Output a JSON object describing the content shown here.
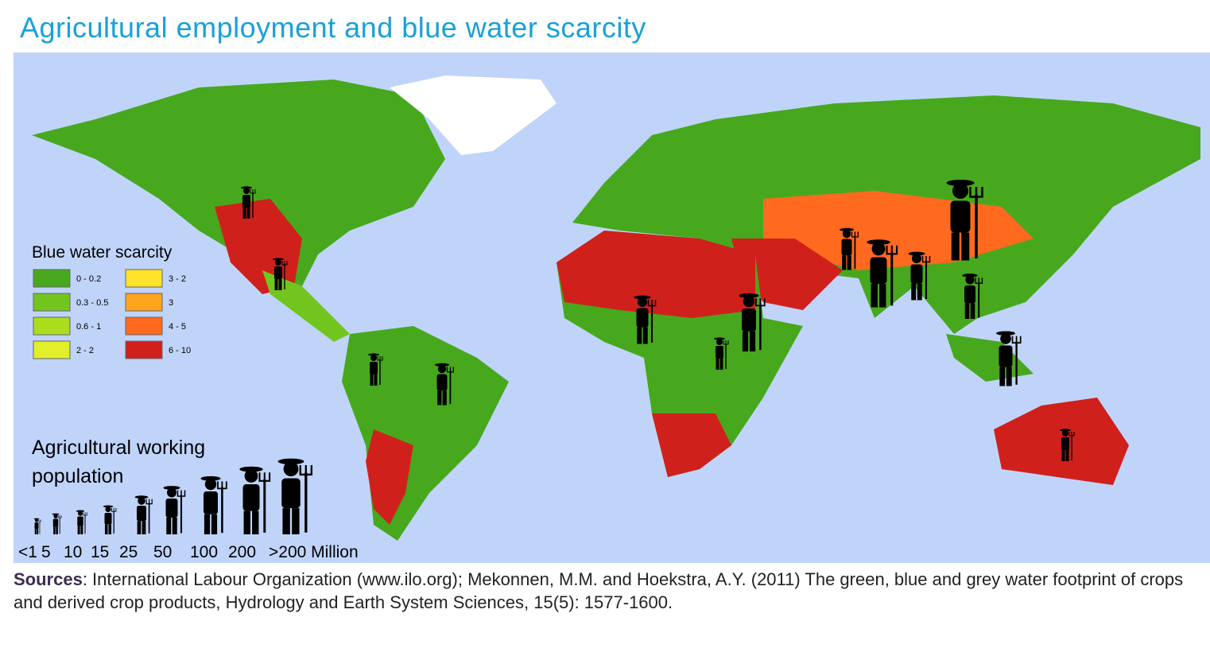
{
  "title": "Agricultural employment and blue water scarcity",
  "legend_scarcity": {
    "title": "Blue water scarcity",
    "classes": [
      {
        "label": "0 - 0.2",
        "color": "#47a81e"
      },
      {
        "label": "0.3 - 0.5",
        "color": "#72c51f"
      },
      {
        "label": "0.6 - 1",
        "color": "#acdc1e"
      },
      {
        "label": "2 - 2",
        "color": "#e2ef2a"
      },
      {
        "label": "3 - 2",
        "color": "#ffe22a"
      },
      {
        "label": "3",
        "color": "#ffa41f"
      },
      {
        "label": "4 - 5",
        "color": "#ff6a1f"
      },
      {
        "label": "6 - 10",
        "color": "#d0201c"
      }
    ]
  },
  "legend_population": {
    "title_lines": [
      "Agricultural working",
      "population"
    ],
    "labels": [
      "<1",
      "5",
      "10",
      "15",
      "25",
      "50",
      "100",
      "200",
      ">200 Million"
    ]
  },
  "sources": {
    "label": "Sources",
    "text": ": International Labour Organization (www.ilo.org); Mekonnen, M.M. and Hoekstra, A.Y. (2011) The green, blue and grey water footprint of crops and derived crop products, Hydrology and Earth System Sciences, 15(5): 1577-1600."
  }
}
